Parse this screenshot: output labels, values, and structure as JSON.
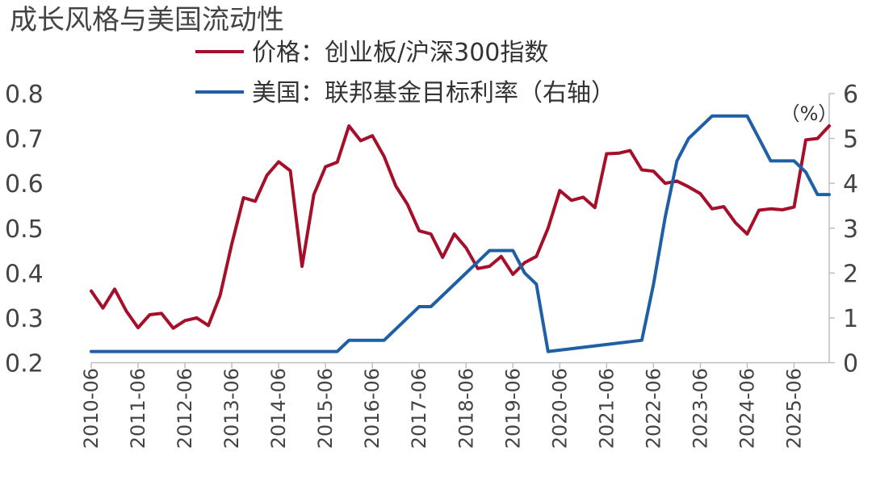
{
  "chart_data": {
    "type": "line",
    "title": "成长风格与美国流动性",
    "x_ticks": [
      "2010-06",
      "2011-06",
      "2012-06",
      "2013-06",
      "2014-06",
      "2015-06",
      "2016-06",
      "2017-06",
      "2018-06",
      "2019-06",
      "2020-06",
      "2021-06",
      "2022-06",
      "2023-06",
      "2024-06",
      "2025-06"
    ],
    "x_range": [
      "2010-06",
      "2026-03"
    ],
    "left_axis": {
      "ylim": [
        0.2,
        0.8
      ],
      "ticks": [
        "0.2",
        "0.3",
        "0.4",
        "0.5",
        "0.6",
        "0.7",
        "0.8"
      ]
    },
    "right_axis": {
      "ylim": [
        0,
        6
      ],
      "ticks": [
        "0",
        "1",
        "2",
        "3",
        "4",
        "5",
        "6"
      ],
      "unit": "（%）"
    },
    "legend_position": "top",
    "grid": false,
    "series": [
      {
        "name": "价格：创业板/沪深300指数",
        "axis": "left",
        "color": "#a50f2a",
        "points": [
          [
            "2010-06",
            0.36
          ],
          [
            "2010-09",
            0.322
          ],
          [
            "2010-12",
            0.364
          ],
          [
            "2011-03",
            0.315
          ],
          [
            "2011-06",
            0.278
          ],
          [
            "2011-09",
            0.307
          ],
          [
            "2011-12",
            0.31
          ],
          [
            "2012-03",
            0.277
          ],
          [
            "2012-06",
            0.294
          ],
          [
            "2012-09",
            0.3
          ],
          [
            "2012-12",
            0.283
          ],
          [
            "2013-03",
            0.35
          ],
          [
            "2013-06",
            0.465
          ],
          [
            "2013-09",
            0.568
          ],
          [
            "2013-12",
            0.56
          ],
          [
            "2014-03",
            0.618
          ],
          [
            "2014-06",
            0.648
          ],
          [
            "2014-09",
            0.628
          ],
          [
            "2014-12",
            0.415
          ],
          [
            "2015-03",
            0.575
          ],
          [
            "2015-06",
            0.637
          ],
          [
            "2015-09",
            0.647
          ],
          [
            "2015-12",
            0.728
          ],
          [
            "2016-03",
            0.695
          ],
          [
            "2016-06",
            0.706
          ],
          [
            "2016-09",
            0.66
          ],
          [
            "2016-12",
            0.594
          ],
          [
            "2017-03",
            0.553
          ],
          [
            "2017-06",
            0.494
          ],
          [
            "2017-09",
            0.487
          ],
          [
            "2017-12",
            0.435
          ],
          [
            "2018-03",
            0.487
          ],
          [
            "2018-06",
            0.456
          ],
          [
            "2018-09",
            0.41
          ],
          [
            "2018-12",
            0.415
          ],
          [
            "2019-03",
            0.437
          ],
          [
            "2019-06",
            0.397
          ],
          [
            "2019-09",
            0.423
          ],
          [
            "2019-12",
            0.437
          ],
          [
            "2020-03",
            0.5
          ],
          [
            "2020-06",
            0.584
          ],
          [
            "2020-09",
            0.562
          ],
          [
            "2020-12",
            0.569
          ],
          [
            "2021-03",
            0.546
          ],
          [
            "2021-06",
            0.666
          ],
          [
            "2021-09",
            0.667
          ],
          [
            "2021-12",
            0.673
          ],
          [
            "2022-03",
            0.63
          ],
          [
            "2022-06",
            0.627
          ],
          [
            "2022-09",
            0.6
          ],
          [
            "2022-12",
            0.605
          ],
          [
            "2023-03",
            0.592
          ],
          [
            "2023-06",
            0.577
          ],
          [
            "2023-09",
            0.543
          ],
          [
            "2023-12",
            0.548
          ],
          [
            "2024-03",
            0.512
          ],
          [
            "2024-06",
            0.487
          ],
          [
            "2024-09",
            0.54
          ],
          [
            "2024-12",
            0.543
          ],
          [
            "2025-03",
            0.541
          ],
          [
            "2025-06",
            0.547
          ],
          [
            "2025-09",
            0.697
          ],
          [
            "2025-12",
            0.7
          ],
          [
            "2026-03",
            0.728
          ]
        ]
      },
      {
        "name": "美国：联邦基金目标利率（右轴）",
        "axis": "right",
        "color": "#1f5fa6",
        "points": [
          [
            "2010-06",
            0.25
          ],
          [
            "2015-09",
            0.25
          ],
          [
            "2015-12",
            0.5
          ],
          [
            "2016-09",
            0.5
          ],
          [
            "2017-06",
            1.25
          ],
          [
            "2017-09",
            1.25
          ],
          [
            "2018-09",
            2.25
          ],
          [
            "2018-12",
            2.5
          ],
          [
            "2019-06",
            2.5
          ],
          [
            "2019-09",
            2.0
          ],
          [
            "2019-12",
            1.75
          ],
          [
            "2020-03",
            0.25
          ],
          [
            "2022-03",
            0.5
          ],
          [
            "2022-06",
            1.75
          ],
          [
            "2022-09",
            3.25
          ],
          [
            "2022-12",
            4.5
          ],
          [
            "2023-03",
            5.0
          ],
          [
            "2023-09",
            5.5
          ],
          [
            "2024-06",
            5.5
          ],
          [
            "2024-09",
            5.0
          ],
          [
            "2024-12",
            4.5
          ],
          [
            "2025-06",
            4.5
          ],
          [
            "2025-09",
            4.25
          ],
          [
            "2025-12",
            3.75
          ],
          [
            "2026-03",
            3.75
          ]
        ]
      }
    ]
  }
}
